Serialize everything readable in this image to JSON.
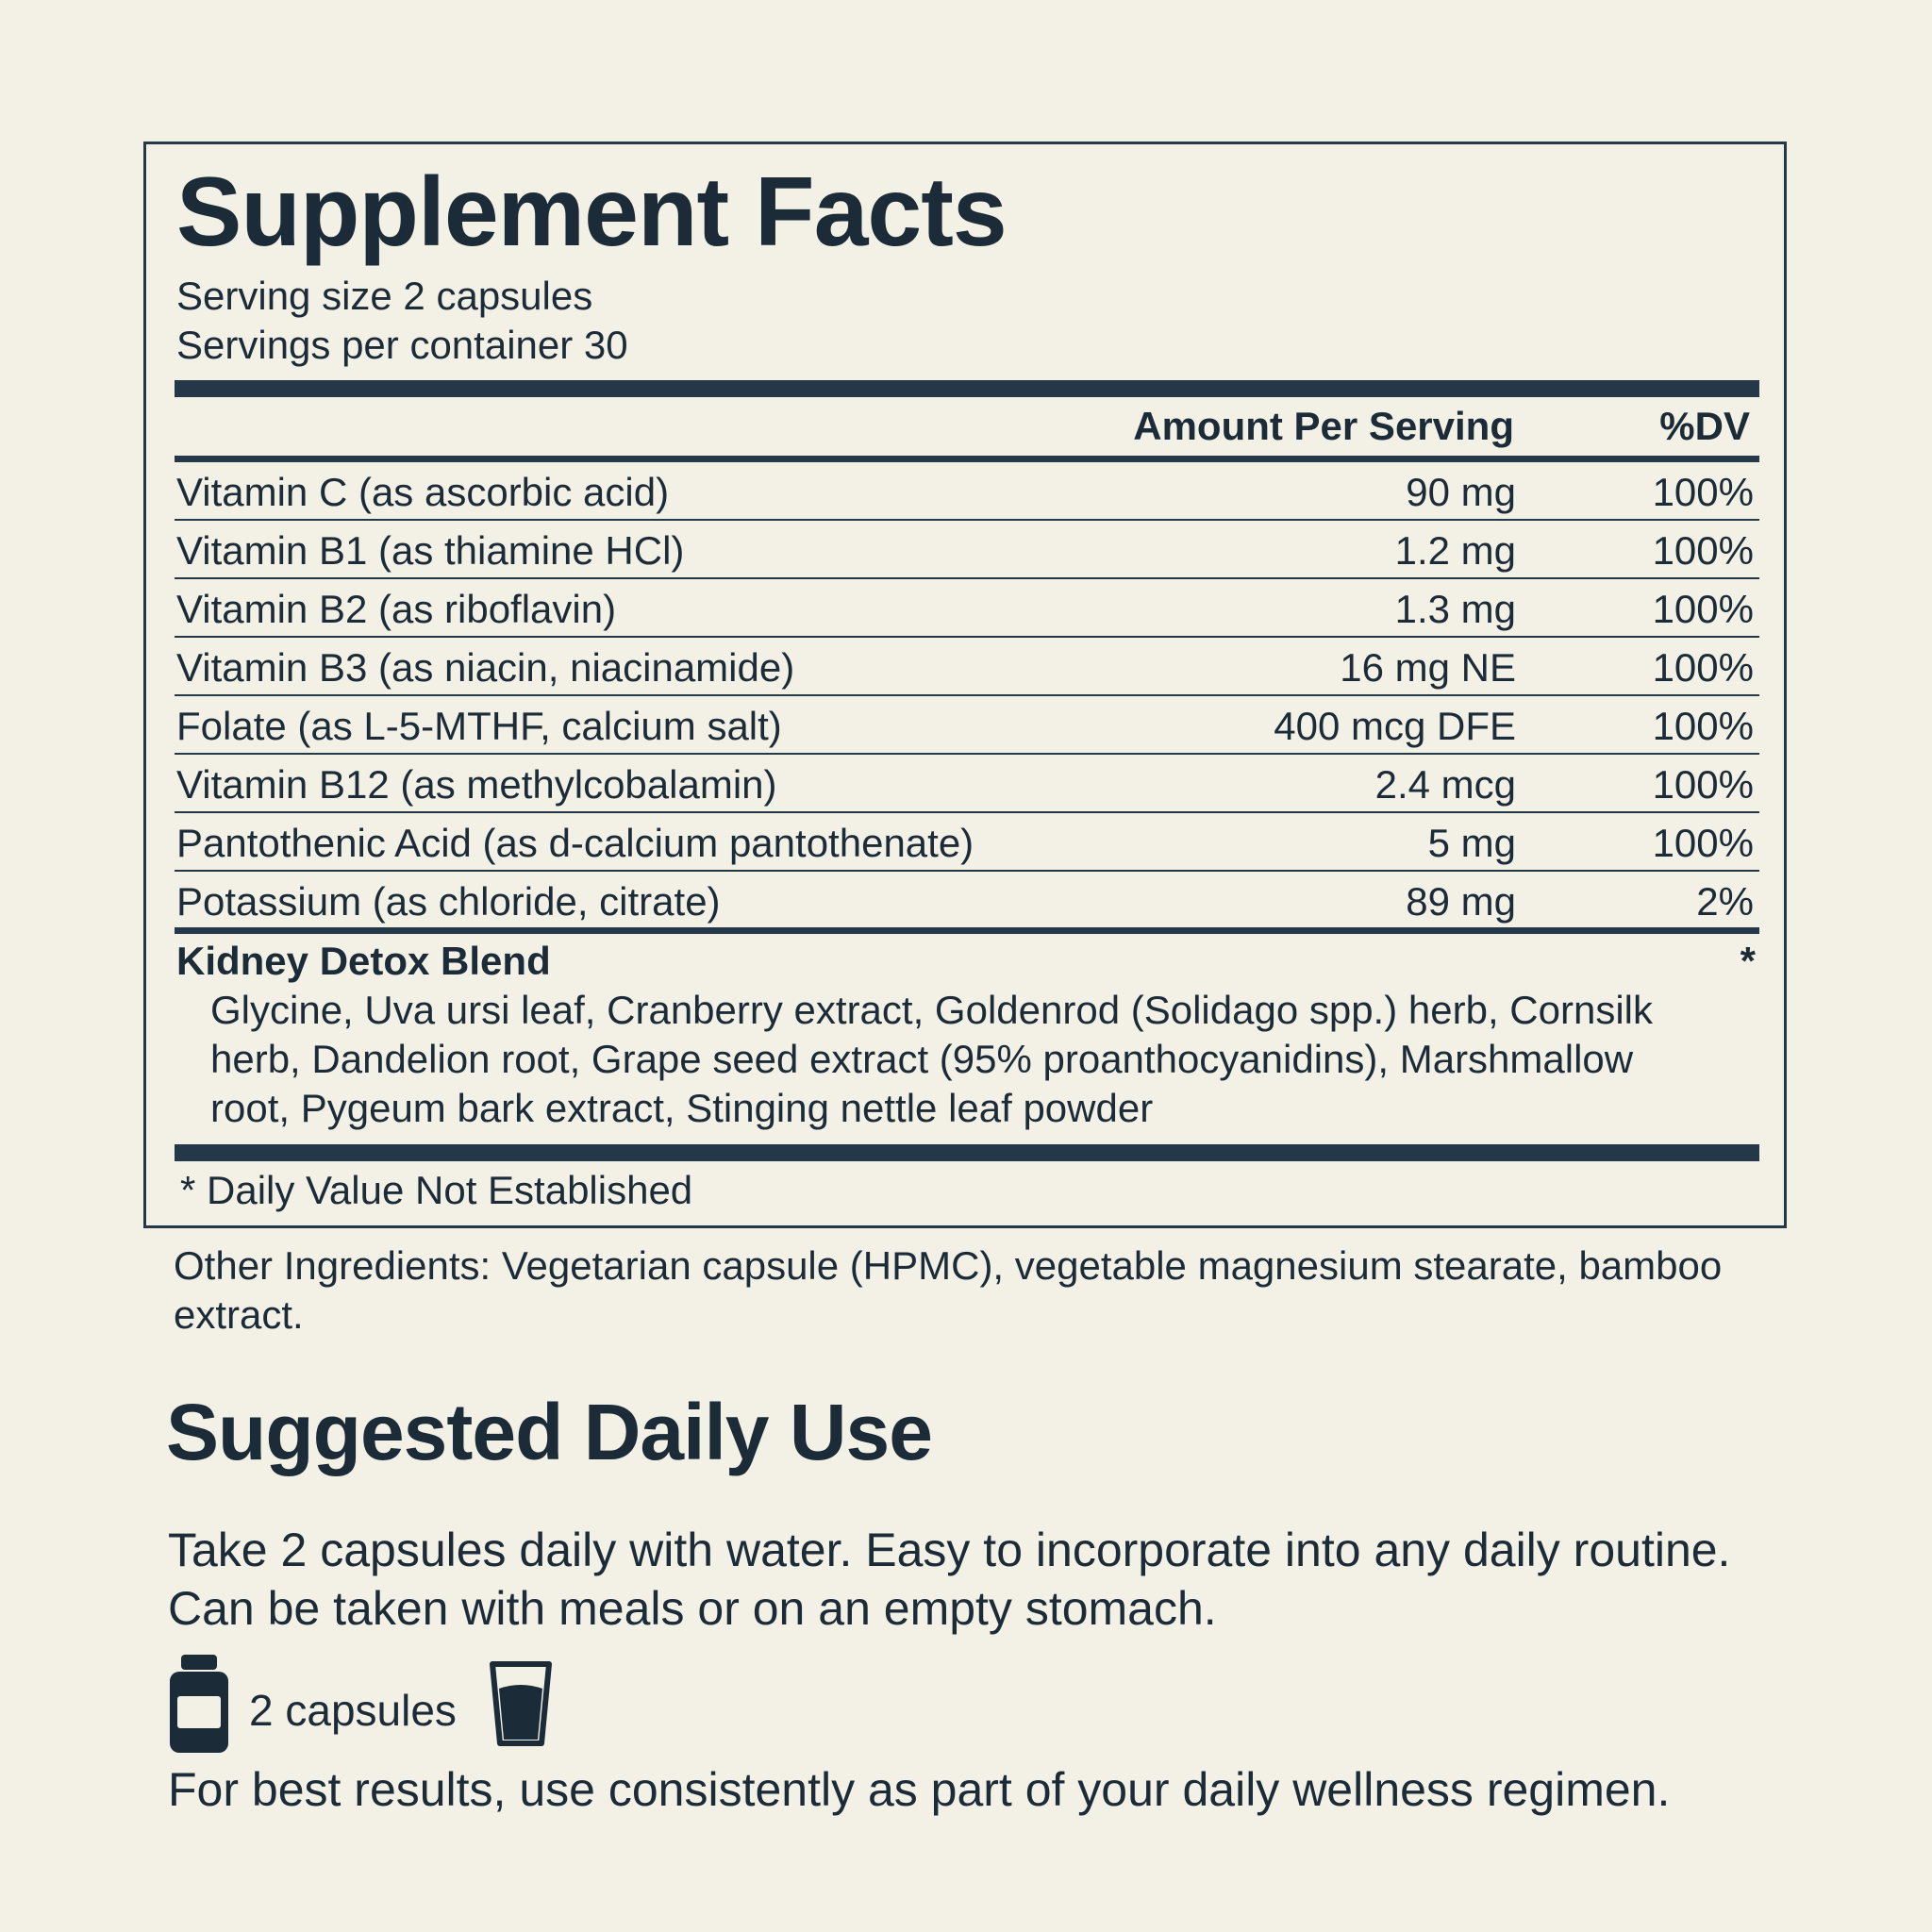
{
  "facts": {
    "title": "Supplement Facts",
    "serving_size": "Serving size 2 capsules",
    "servings_per_container": "Servings per container 30",
    "col_amount": "Amount Per Serving",
    "col_dv": "%DV",
    "rows": [
      {
        "name": "Vitamin C (as ascorbic acid)",
        "amount": "90 mg",
        "dv": "100%"
      },
      {
        "name": "Vitamin B1 (as thiamine HCl)",
        "amount": "1.2 mg",
        "dv": "100%"
      },
      {
        "name": "Vitamin B2 (as riboflavin)",
        "amount": "1.3 mg",
        "dv": "100%"
      },
      {
        "name": "Vitamin B3 (as niacin, niacinamide)",
        "amount": "16 mg NE",
        "dv": "100%"
      },
      {
        "name": "Folate (as L-5-MTHF, calcium salt)",
        "amount": "400 mcg DFE",
        "dv": "100%"
      },
      {
        "name": "Vitamin B12 (as methylcobalamin)",
        "amount": "2.4 mcg",
        "dv": "100%"
      },
      {
        "name": "Pantothenic Acid (as d-calcium pantothenate)",
        "amount": "5 mg",
        "dv": "100%"
      },
      {
        "name": "Potassium (as chloride, citrate)",
        "amount": "89 mg",
        "dv": "2%"
      }
    ],
    "blend": {
      "title": "Kidney Detox Blend",
      "dv": "*",
      "ingredients": "Glycine, Uva ursi leaf, Cranberry extract, Goldenrod (Solidago spp.) herb, Cornsilk herb, Dandelion root, Grape seed extract (95% proanthocyanidins), Marshmallow root, Pygeum bark extract, Stinging nettle leaf powder"
    },
    "footnote": "* Daily Value Not Established"
  },
  "other_ingredients": "Other Ingredients: Vegetarian capsule (HPMC), vegetable magnesium stearate, bamboo extract.",
  "usage": {
    "title": "Suggested Daily Use",
    "text": "Take 2 capsules daily with water. Easy to incorporate into any daily routine. Can be taken with meals or on an empty stomach.",
    "dose_label": "2 capsules",
    "dose_icons": [
      "bottle-icon",
      "water-glass-icon"
    ],
    "best_results": "For best results, use consistently as part of your daily wellness regimen."
  },
  "colors": {
    "background": "#f3f0e6",
    "ink": "#1b2b38",
    "rule": "#24384a"
  }
}
